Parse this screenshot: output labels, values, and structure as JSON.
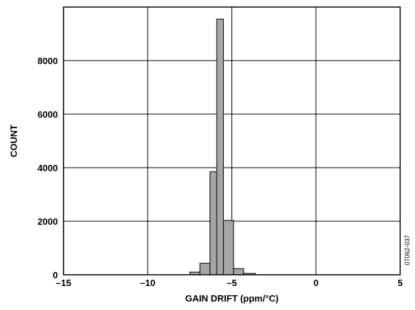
{
  "chart_data": {
    "type": "bar",
    "title": "",
    "xlabel": "GAIN DRIFT (ppm/°C)",
    "ylabel": "COUNT",
    "xlim": [
      -15,
      5
    ],
    "ylim": [
      0,
      10000
    ],
    "x_ticks": [
      -15,
      -10,
      -5,
      0,
      5
    ],
    "x_tick_labels": [
      "–15",
      "–10",
      "–5",
      "0",
      "5"
    ],
    "y_ticks": [
      0,
      2000,
      4000,
      6000,
      8000
    ],
    "y_tick_labels": [
      "0",
      "2000",
      "4000",
      "6000",
      "8000"
    ],
    "grid": true,
    "bar_color": "#a6a6a6",
    "bins": [
      {
        "x0": -7.5,
        "x1": -6.9,
        "count": 100
      },
      {
        "x0": -6.9,
        "x1": -6.3,
        "count": 430
      },
      {
        "x0": -6.3,
        "x1": -5.9,
        "count": 3850
      },
      {
        "x0": -5.9,
        "x1": -5.5,
        "count": 9550
      },
      {
        "x0": -5.5,
        "x1": -4.9,
        "count": 2030
      },
      {
        "x0": -4.9,
        "x1": -4.3,
        "count": 230
      },
      {
        "x0": -4.3,
        "x1": -3.6,
        "count": 50
      }
    ]
  },
  "figure_id": "07062-037"
}
